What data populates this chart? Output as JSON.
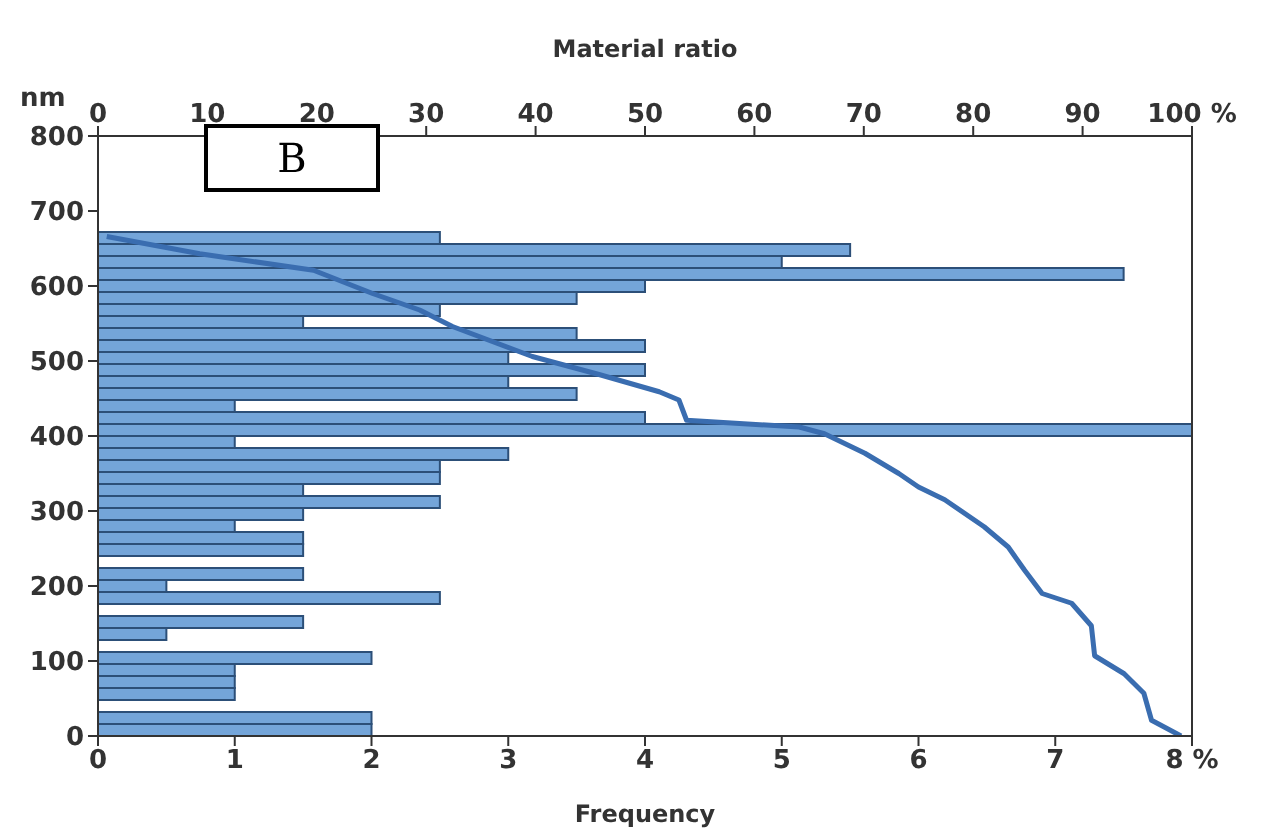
{
  "chart_data": {
    "type": "histogram",
    "orientation": "horizontal",
    "xlabel": "Frequency",
    "x2label": "Material ratio",
    "ylabel": "nm",
    "annotations": [
      "B"
    ],
    "bins": [
      0,
      16,
      32,
      48,
      64,
      80,
      96,
      112,
      128,
      144,
      160,
      176,
      192,
      208,
      224,
      240,
      256,
      272,
      288,
      304,
      320,
      336,
      352,
      368,
      384,
      400,
      416,
      432,
      448,
      464,
      480,
      496,
      512,
      528,
      544,
      560,
      576,
      592,
      608,
      624,
      640,
      656,
      672
    ],
    "series": [
      {
        "color": "#74a5d9",
        "values": [
          2,
          2,
          0,
          1,
          1,
          1,
          2,
          0,
          0.5,
          1.5,
          0,
          2.5,
          0.5,
          1.5,
          0,
          1.5,
          1.5,
          1,
          1.5,
          2.5,
          1.5,
          2.5,
          2.5,
          3,
          1,
          8,
          4,
          1,
          3.5,
          3,
          4,
          3,
          4,
          3.5,
          1.5,
          2.5,
          3.5,
          4,
          7.5,
          5,
          5.5,
          2.5
        ]
      },
      {
        "type": "line",
        "axis": "x2",
        "color": "#3a6db0",
        "x": [
          666,
          643,
          621,
          590,
          568,
          546,
          506,
          482,
          459,
          448,
          421,
          412,
          403,
          377,
          350,
          332,
          315,
          279,
          252,
          221,
          190,
          177,
          147,
          107,
          83,
          57,
          21,
          0
        ],
        "values": [
          0.8,
          9.3,
          19.7,
          25.1,
          29.4,
          32.4,
          39.7,
          45.8,
          51.3,
          53.1,
          53.8,
          64.1,
          66.4,
          70.1,
          73.2,
          75,
          77.4,
          81,
          83.2,
          84.7,
          86.3,
          89,
          90.8,
          91.1,
          93.8,
          95.6,
          96.3,
          99
        ]
      }
    ],
    "xlim": [
      0,
      8
    ],
    "xticks": [
      0,
      1,
      2,
      3,
      4,
      5,
      6,
      7,
      {
        "value": 8,
        "label": "8 %"
      }
    ],
    "x2lim": [
      0,
      100
    ],
    "x2ticks": [
      0,
      10,
      20,
      30,
      40,
      50,
      60,
      70,
      80,
      90,
      {
        "value": 100,
        "label": "100 %"
      }
    ],
    "ylim": [
      0,
      800
    ],
    "yticks": [
      0,
      100,
      200,
      300,
      400,
      500,
      600,
      700,
      800
    ],
    "grid": false,
    "legend": false,
    "marker": "none",
    "line_style": "solid"
  }
}
